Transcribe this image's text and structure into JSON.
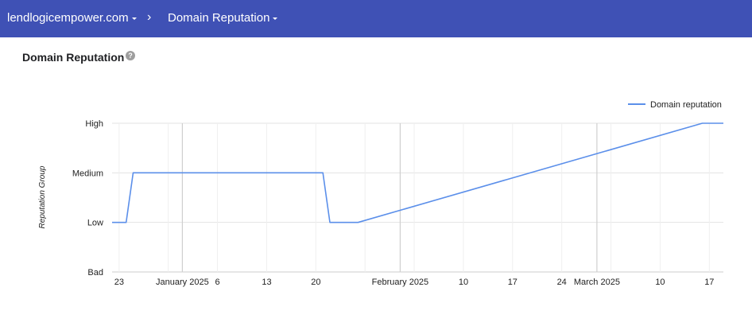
{
  "header": {
    "domain": "lendlogicempower.com",
    "separator": "›",
    "page": "Domain Reputation"
  },
  "page_title": "Domain Reputation",
  "help_icon_glyph": "?",
  "icons": {
    "help": "help-icon",
    "domain_dropdown": "caret-down-icon",
    "page_dropdown": "caret-down-icon",
    "breadcrumb_separator": "chevron-right-icon"
  },
  "colors": {
    "header_bg": "#3f51b5",
    "series_line": "#5b8fea",
    "help_icon": "#9e9e9e"
  },
  "chart_data": {
    "type": "line",
    "ylabel": "Reputation Group",
    "y_categories": [
      "Bad",
      "Low",
      "Medium",
      "High"
    ],
    "x_start": "2024-12-22",
    "x_end": "2025-03-19",
    "x_ticks": [
      {
        "date": "2024-12-23",
        "label": "23"
      },
      {
        "date": "2025-01-01",
        "label": "January 2025"
      },
      {
        "date": "2025-01-06",
        "label": "6"
      },
      {
        "date": "2025-01-13",
        "label": "13"
      },
      {
        "date": "2025-01-20",
        "label": "20"
      },
      {
        "date": "2025-02-01",
        "label": "February 2025"
      },
      {
        "date": "2025-02-10",
        "label": "10"
      },
      {
        "date": "2025-02-17",
        "label": "17"
      },
      {
        "date": "2025-02-24",
        "label": "24"
      },
      {
        "date": "2025-03-01",
        "label": "March 2025"
      },
      {
        "date": "2025-03-10",
        "label": "10"
      },
      {
        "date": "2025-03-17",
        "label": "17"
      }
    ],
    "major_gridlines": [
      "2025-01-01",
      "2025-02-01",
      "2025-03-01"
    ],
    "series": [
      {
        "name": "Domain reputation",
        "points": [
          {
            "x": "2024-12-22",
            "y": "Low"
          },
          {
            "x": "2024-12-24",
            "y": "Low"
          },
          {
            "x": "2024-12-25",
            "y": "Medium"
          },
          {
            "x": "2025-01-21",
            "y": "Medium"
          },
          {
            "x": "2025-01-22",
            "y": "Low"
          },
          {
            "x": "2025-01-26",
            "y": "Low"
          },
          {
            "x": "2025-03-16",
            "y": "High"
          },
          {
            "x": "2025-03-19",
            "y": "High"
          }
        ]
      }
    ],
    "legend": "top-right",
    "grid": true
  }
}
